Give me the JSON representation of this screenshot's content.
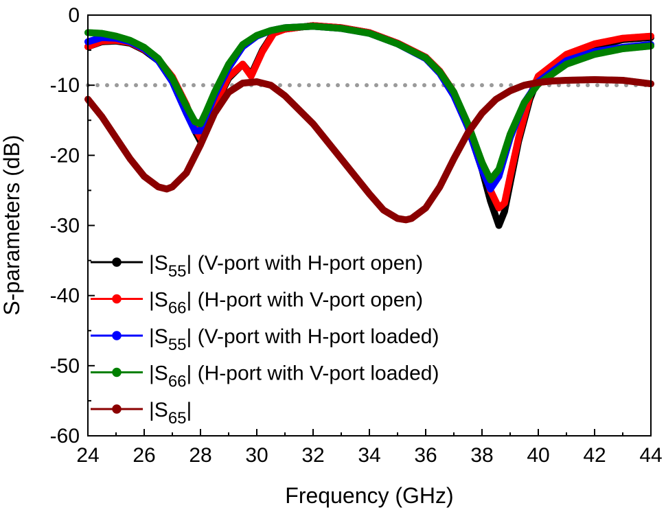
{
  "chart_data": {
    "type": "line",
    "xlabel": "Frequency (GHz)",
    "ylabel": "S-parameters (dB)",
    "xlim": [
      24,
      44
    ],
    "ylim": [
      -60,
      0
    ],
    "xticks": [
      24,
      26,
      28,
      30,
      32,
      34,
      36,
      38,
      40,
      42,
      44
    ],
    "yticks": [
      0,
      -10,
      -20,
      -30,
      -40,
      -50,
      -60
    ],
    "xtick_labels": [
      "24",
      "26",
      "28",
      "30",
      "32",
      "34",
      "36",
      "38",
      "40",
      "42",
      "44"
    ],
    "ytick_labels": [
      "0",
      "-10",
      "-20",
      "-30",
      "-40",
      "-50",
      "-60"
    ],
    "grid": false,
    "legend_position": "bottom-left",
    "reference_line": {
      "y": -10,
      "style": "dotted",
      "color": "#9a9a9a"
    },
    "series": [
      {
        "legend_prefix": "|S",
        "legend_sub": "55",
        "legend_suffix": "| (V-port with H-port open)",
        "color": "#000000",
        "x": [
          24,
          24.5,
          25,
          25.5,
          26,
          26.5,
          27,
          27.5,
          27.8,
          28,
          28.2,
          28.5,
          29,
          29.5,
          29.8,
          30.2,
          30.6,
          31,
          32,
          33,
          34,
          35,
          36,
          36.5,
          37,
          37.5,
          38,
          38.3,
          38.6,
          38.8,
          39,
          39.3,
          39.7,
          40,
          41,
          42,
          43,
          44
        ],
        "y": [
          -4.5,
          -3.8,
          -3.7,
          -4.0,
          -5.0,
          -6.5,
          -9.0,
          -13.0,
          -16.5,
          -18.0,
          -16.5,
          -13.0,
          -9.0,
          -7.0,
          -8.5,
          -5.0,
          -2.5,
          -2.0,
          -1.5,
          -1.8,
          -2.5,
          -4.0,
          -6.0,
          -8.0,
          -11.0,
          -16.0,
          -22.0,
          -26.5,
          -30.0,
          -28.0,
          -24.0,
          -18.0,
          -12.0,
          -9.0,
          -6.0,
          -4.5,
          -3.5,
          -3.2
        ]
      },
      {
        "legend_prefix": "|S",
        "legend_sub": "66",
        "legend_suffix": "| (H-port with V-port open)",
        "color": "#ff0000",
        "x": [
          24,
          24.5,
          25,
          25.5,
          26,
          26.5,
          27,
          27.5,
          27.8,
          28,
          28.2,
          28.5,
          29,
          29.5,
          29.8,
          30.2,
          30.6,
          31,
          32,
          33,
          34,
          35,
          36,
          36.5,
          37,
          37.5,
          38,
          38.3,
          38.6,
          38.8,
          39,
          39.3,
          39.7,
          40,
          41,
          42,
          43,
          44
        ],
        "y": [
          -4.5,
          -3.7,
          -3.6,
          -3.9,
          -4.9,
          -6.3,
          -8.8,
          -12.8,
          -16.0,
          -17.5,
          -16.0,
          -12.8,
          -8.8,
          -7.0,
          -8.7,
          -5.2,
          -2.6,
          -2.0,
          -1.5,
          -1.8,
          -2.5,
          -4.0,
          -6.0,
          -8.0,
          -11.0,
          -15.8,
          -21.0,
          -25.0,
          -27.5,
          -26.8,
          -23.0,
          -17.5,
          -11.5,
          -8.7,
          -5.6,
          -4.1,
          -3.3,
          -3.0
        ]
      },
      {
        "legend_prefix": "|S",
        "legend_sub": "55",
        "legend_suffix": "| (V-port with H-port loaded)",
        "color": "#0000ff",
        "x": [
          24,
          24.5,
          25,
          25.5,
          26,
          26.5,
          27,
          27.5,
          27.8,
          28,
          28.2,
          28.5,
          29,
          29.5,
          30,
          30.5,
          31,
          32,
          33,
          34,
          35,
          36,
          36.5,
          37,
          37.5,
          38,
          38.3,
          38.6,
          39,
          39.5,
          40,
          41,
          42,
          43,
          44
        ],
        "y": [
          -3.8,
          -3.2,
          -3.3,
          -3.8,
          -4.8,
          -6.5,
          -9.5,
          -14.0,
          -16.5,
          -16.5,
          -14.5,
          -11.5,
          -7.5,
          -4.5,
          -3.0,
          -2.2,
          -1.8,
          -1.6,
          -1.9,
          -2.6,
          -4.1,
          -6.2,
          -8.3,
          -11.5,
          -16.0,
          -22.0,
          -24.8,
          -23.0,
          -17.5,
          -12.5,
          -9.5,
          -6.5,
          -5.2,
          -4.6,
          -4.2
        ]
      },
      {
        "legend_prefix": "|S",
        "legend_sub": "66",
        "legend_suffix": "| (H-port with V-port loaded)",
        "color": "#008000",
        "x": [
          24,
          24.5,
          25,
          25.5,
          26,
          26.5,
          27,
          27.5,
          27.8,
          28,
          28.2,
          28.5,
          29,
          29.5,
          30,
          30.5,
          31,
          32,
          33,
          34,
          35,
          36,
          36.5,
          37,
          37.5,
          38,
          38.3,
          38.6,
          39,
          39.5,
          40,
          41,
          42,
          43,
          44
        ],
        "y": [
          -2.5,
          -2.6,
          -3.0,
          -3.6,
          -4.6,
          -6.2,
          -9.0,
          -13.0,
          -15.2,
          -15.5,
          -13.8,
          -11.0,
          -7.0,
          -4.2,
          -2.9,
          -2.2,
          -1.8,
          -1.6,
          -1.9,
          -2.6,
          -4.1,
          -6.1,
          -8.1,
          -11.0,
          -15.5,
          -21.0,
          -23.5,
          -22.0,
          -17.0,
          -12.5,
          -9.8,
          -7.0,
          -5.6,
          -4.8,
          -4.4
        ]
      },
      {
        "legend_prefix": "|S",
        "legend_sub": "65",
        "legend_suffix": "|",
        "color": "#8b0000",
        "x": [
          24,
          24.5,
          25,
          25.5,
          26,
          26.5,
          26.8,
          27,
          27.5,
          28,
          28.5,
          29,
          29.5,
          30,
          30.5,
          31,
          32,
          33,
          34,
          34.5,
          35,
          35.3,
          35.5,
          36,
          36.5,
          37,
          37.5,
          38,
          38.5,
          39,
          39.5,
          40,
          40.5,
          41,
          42,
          43,
          44
        ],
        "y": [
          -12.0,
          -14.5,
          -17.5,
          -20.5,
          -23.0,
          -24.5,
          -24.8,
          -24.5,
          -22.5,
          -18.5,
          -14.0,
          -11.0,
          -9.7,
          -9.5,
          -10.0,
          -11.5,
          -15.5,
          -20.5,
          -25.5,
          -27.8,
          -29.0,
          -29.2,
          -29.0,
          -27.5,
          -24.5,
          -20.5,
          -16.8,
          -14.0,
          -12.0,
          -10.8,
          -10.0,
          -9.6,
          -9.4,
          -9.3,
          -9.2,
          -9.3,
          -9.8
        ]
      }
    ]
  }
}
